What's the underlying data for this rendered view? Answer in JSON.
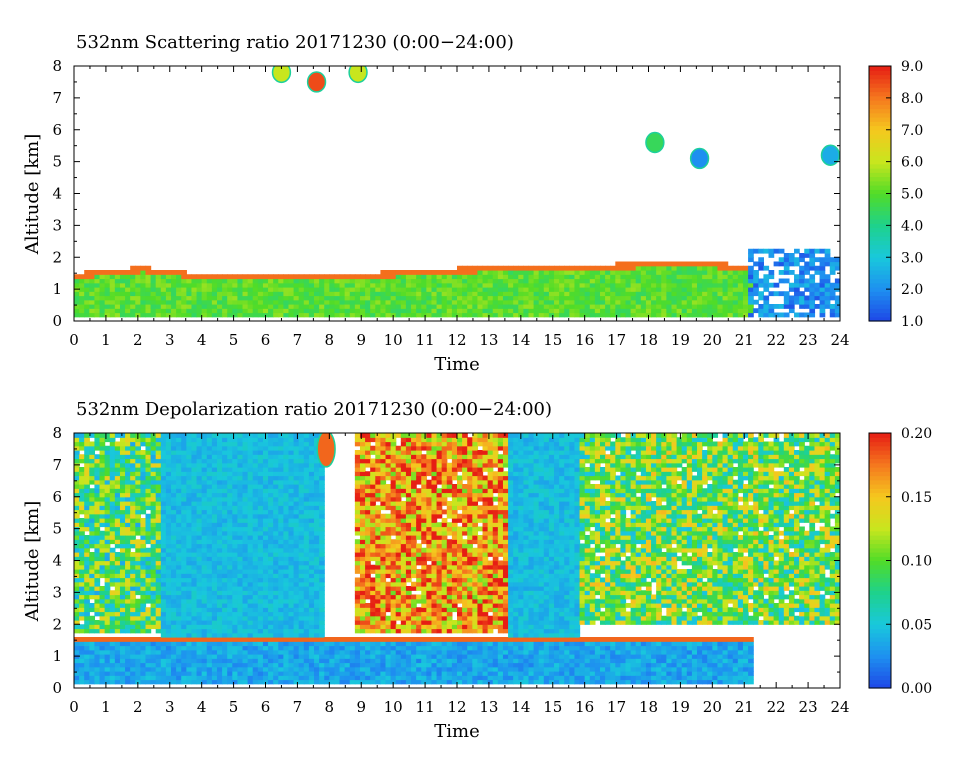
{
  "chart_data": [
    {
      "type": "heatmap",
      "title": "532nm Scattering ratio  20171230 (0:00−24:00)",
      "xlabel": "Time",
      "ylabel": "Altitude [km]",
      "xlim": [
        0,
        24
      ],
      "ylim": [
        0,
        8
      ],
      "x_ticks": [
        "0",
        "1",
        "2",
        "3",
        "4",
        "5",
        "6",
        "7",
        "8",
        "9",
        "10",
        "11",
        "12",
        "13",
        "14",
        "15",
        "16",
        "17",
        "18",
        "19",
        "20",
        "21",
        "22",
        "23",
        "24"
      ],
      "y_ticks": [
        "0",
        "1",
        "2",
        "3",
        "4",
        "5",
        "6",
        "7",
        "8"
      ],
      "colorbar": {
        "min": 1.0,
        "max": 9.0,
        "ticks": [
          "1.0",
          "2.0",
          "3.0",
          "4.0",
          "5.0",
          "6.0",
          "7.0",
          "8.0",
          "9.0"
        ],
        "colors": [
          "#1e46e6",
          "#1e90f0",
          "#19c8dc",
          "#1ed28c",
          "#50dc28",
          "#c8e61e",
          "#f5c81e",
          "#f5781e",
          "#e61e14"
        ]
      },
      "features": [
        {
          "type": "layer",
          "t_start": 0.0,
          "t_end": 21.2,
          "alt_base_km": 0.2,
          "alt_top_km": [
            1.5,
            1.7,
            1.45,
            1.45,
            1.45,
            1.6,
            1.7,
            1.7,
            1.8,
            1.9,
            1.75
          ],
          "value": 5.0
        },
        {
          "type": "cloud",
          "t_center": 7.6,
          "alt_km": 7.5,
          "value": 8.5
        },
        {
          "type": "cloud",
          "t_center": 6.5,
          "alt_km": 7.8,
          "value": 6.0
        },
        {
          "type": "cloud",
          "t_center": 8.9,
          "alt_km": 7.8,
          "value": 6.0
        },
        {
          "type": "cloud",
          "t_center": 19.6,
          "alt_km": 5.1,
          "value": 2.0
        },
        {
          "type": "cloud",
          "t_center": 18.2,
          "alt_km": 5.6,
          "value": 4.5
        },
        {
          "type": "cloud",
          "t_center": 23.7,
          "alt_km": 5.2,
          "value": 2.5
        },
        {
          "type": "low_signal",
          "t_start": 21.2,
          "t_end": 24.0,
          "alt_km": [
            0.2,
            2.2
          ],
          "value": 2.0
        }
      ]
    },
    {
      "type": "heatmap",
      "title": "532nm Depolarization ratio  20171230 (0:00−24:00)",
      "xlabel": "Time",
      "ylabel": "Altitude [km]",
      "xlim": [
        0,
        24
      ],
      "ylim": [
        0,
        8
      ],
      "x_ticks": [
        "0",
        "1",
        "2",
        "3",
        "4",
        "5",
        "6",
        "7",
        "8",
        "9",
        "10",
        "11",
        "12",
        "13",
        "14",
        "15",
        "16",
        "17",
        "18",
        "19",
        "20",
        "21",
        "22",
        "23",
        "24"
      ],
      "y_ticks": [
        "0",
        "1",
        "2",
        "3",
        "4",
        "5",
        "6",
        "7",
        "8"
      ],
      "colorbar": {
        "min": 0.0,
        "max": 0.2,
        "ticks": [
          "0.00",
          "0.05",
          "0.10",
          "0.15",
          "0.20"
        ],
        "colors": [
          "#1e46e6",
          "#1e90f0",
          "#19c8dc",
          "#1ed28c",
          "#50dc28",
          "#c8e61e",
          "#f5c81e",
          "#f5781e",
          "#e61e14"
        ]
      },
      "features": [
        {
          "type": "noise_region",
          "t_start": 0.0,
          "t_end": 2.8,
          "alt_km": [
            1.8,
            8.0
          ],
          "value": 0.09
        },
        {
          "type": "quiet_region",
          "t_start": 2.8,
          "t_end": 7.8,
          "alt_km": [
            1.5,
            8.0
          ],
          "value": 0.045
        },
        {
          "type": "cloud",
          "t_center": 7.9,
          "alt_km": [
            7.0,
            8.0
          ],
          "value": 0.18
        },
        {
          "type": "noise_region",
          "t_start": 8.8,
          "t_end": 13.6,
          "alt_km": [
            1.8,
            8.0
          ],
          "value": 0.16
        },
        {
          "type": "quiet_region",
          "t_start": 13.6,
          "t_end": 15.8,
          "alt_km": [
            1.5,
            8.0
          ],
          "value": 0.045
        },
        {
          "type": "noise_region",
          "t_start": 15.8,
          "t_end": 24.0,
          "alt_km": [
            2.0,
            8.0
          ],
          "value": 0.1
        },
        {
          "type": "layer",
          "t_start": 0.0,
          "t_end": 21.2,
          "alt_base_km": 0.2,
          "alt_top_km": 1.6,
          "value": 0.035
        }
      ]
    }
  ]
}
